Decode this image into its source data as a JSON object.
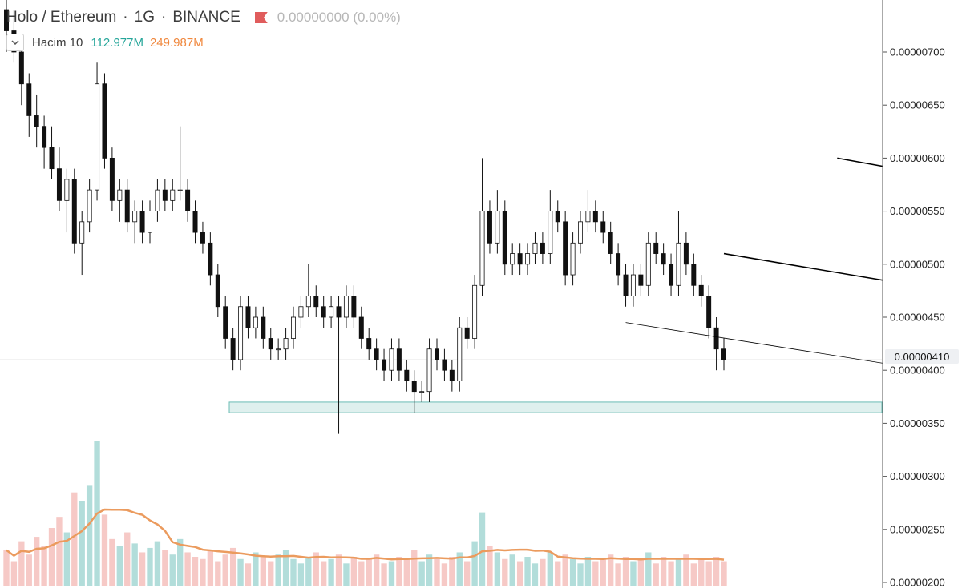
{
  "header": {
    "symbol": "Holo / Ethereum",
    "interval": "1G",
    "exchange": "BINANCE",
    "change": "0.00000000 (0.00%)",
    "sep1": "·",
    "sep2": "·"
  },
  "volume_legend": {
    "name": "Hacim 10",
    "value1": "112.977M",
    "value2": "249.987M"
  },
  "last_price_label": "0.00000410",
  "colors": {
    "candle": "#111111",
    "candle_up_body": "#ffffff",
    "volume_up": "#b2ddda",
    "volume_down": "#f6c9c6",
    "volume_ma": "#eb9b5e",
    "zone_fill": "#dff0ee",
    "zone_border": "#6bbcb4",
    "axis_line": "#555555"
  },
  "chart_data": {
    "type": "candlestick",
    "y_axis_ticks": [
      "0.00000700",
      "0.00000650",
      "0.00000600",
      "0.00000550",
      "0.00000500",
      "0.00000450",
      "0.00000400",
      "0.00000350",
      "0.00000300",
      "0.00000250",
      "0.00000200"
    ],
    "ylim": [
      2e-06,
      7.4e-06
    ],
    "last_price": 4.1e-06,
    "support_zone": {
      "from": 3.6e-06,
      "to": 3.7e-06
    },
    "trend_lines": [
      {
        "name": "channel-top",
        "from": [
          110,
          6e-06
        ],
        "to": [
          208,
          4.75e-06
        ]
      },
      {
        "name": "channel-bottom",
        "from": [
          95,
          5.1e-06
        ],
        "to": [
          204,
          3.8e-06
        ]
      },
      {
        "name": "lower-line",
        "from": [
          82,
          4.45e-06
        ],
        "to": [
          193,
          3.2e-06
        ]
      }
    ],
    "ohlc": [
      [
        7.4,
        7.5,
        7.0,
        7.2
      ],
      [
        7.2,
        7.4,
        6.9,
        7.0
      ],
      [
        7.0,
        7.1,
        6.5,
        6.7
      ],
      [
        6.7,
        6.8,
        6.2,
        6.4
      ],
      [
        6.4,
        6.6,
        6.1,
        6.3
      ],
      [
        6.3,
        6.4,
        5.9,
        6.1
      ],
      [
        6.1,
        6.3,
        5.8,
        5.9
      ],
      [
        5.9,
        6.1,
        5.5,
        5.6
      ],
      [
        5.6,
        5.9,
        5.3,
        5.8
      ],
      [
        5.8,
        5.9,
        5.1,
        5.2
      ],
      [
        5.2,
        5.5,
        4.9,
        5.4
      ],
      [
        5.4,
        5.8,
        5.3,
        5.7
      ],
      [
        5.7,
        6.9,
        5.6,
        6.7
      ],
      [
        6.7,
        6.8,
        5.9,
        6.0
      ],
      [
        6.0,
        6.1,
        5.5,
        5.6
      ],
      [
        5.6,
        5.8,
        5.4,
        5.7
      ],
      [
        5.7,
        5.8,
        5.3,
        5.4
      ],
      [
        5.4,
        5.6,
        5.2,
        5.5
      ],
      [
        5.5,
        5.6,
        5.2,
        5.3
      ],
      [
        5.3,
        5.6,
        5.2,
        5.5
      ],
      [
        5.5,
        5.8,
        5.4,
        5.7
      ],
      [
        5.7,
        5.8,
        5.5,
        5.6
      ],
      [
        5.6,
        5.8,
        5.5,
        5.7
      ],
      [
        5.7,
        6.3,
        5.6,
        5.7
      ],
      [
        5.7,
        5.8,
        5.4,
        5.5
      ],
      [
        5.5,
        5.6,
        5.2,
        5.3
      ],
      [
        5.3,
        5.4,
        5.1,
        5.2
      ],
      [
        5.2,
        5.3,
        4.8,
        4.9
      ],
      [
        4.9,
        5.0,
        4.5,
        4.6
      ],
      [
        4.6,
        4.7,
        4.2,
        4.3
      ],
      [
        4.3,
        4.4,
        4.0,
        4.1
      ],
      [
        4.1,
        4.7,
        4.0,
        4.6
      ],
      [
        4.6,
        4.7,
        4.3,
        4.4
      ],
      [
        4.4,
        4.6,
        4.3,
        4.5
      ],
      [
        4.5,
        4.6,
        4.2,
        4.3
      ],
      [
        4.3,
        4.4,
        4.1,
        4.2
      ],
      [
        4.2,
        4.3,
        4.1,
        4.2
      ],
      [
        4.2,
        4.4,
        4.1,
        4.3
      ],
      [
        4.3,
        4.6,
        4.2,
        4.5
      ],
      [
        4.5,
        4.7,
        4.4,
        4.6
      ],
      [
        4.6,
        5.0,
        4.5,
        4.7
      ],
      [
        4.7,
        4.8,
        4.5,
        4.6
      ],
      [
        4.6,
        4.7,
        4.4,
        4.5
      ],
      [
        4.5,
        4.7,
        4.4,
        4.6
      ],
      [
        4.6,
        4.7,
        3.4,
        4.5
      ],
      [
        4.5,
        4.8,
        4.4,
        4.7
      ],
      [
        4.7,
        4.8,
        4.4,
        4.5
      ],
      [
        4.5,
        4.6,
        4.2,
        4.3
      ],
      [
        4.3,
        4.4,
        4.1,
        4.2
      ],
      [
        4.2,
        4.3,
        4.0,
        4.1
      ],
      [
        4.1,
        4.2,
        3.9,
        4.0
      ],
      [
        4.0,
        4.3,
        3.9,
        4.2
      ],
      [
        4.2,
        4.3,
        3.9,
        4.0
      ],
      [
        4.0,
        4.1,
        3.8,
        3.9
      ],
      [
        3.9,
        4.0,
        3.6,
        3.8
      ],
      [
        3.8,
        3.9,
        3.7,
        3.8
      ],
      [
        3.8,
        4.3,
        3.7,
        4.2
      ],
      [
        4.2,
        4.3,
        4.0,
        4.1
      ],
      [
        4.1,
        4.2,
        3.9,
        4.0
      ],
      [
        4.0,
        4.1,
        3.8,
        3.9
      ],
      [
        3.9,
        4.5,
        3.8,
        4.4
      ],
      [
        4.4,
        4.5,
        4.2,
        4.3
      ],
      [
        4.3,
        4.9,
        4.2,
        4.8
      ],
      [
        4.8,
        6.0,
        4.7,
        5.5
      ],
      [
        5.5,
        5.6,
        5.1,
        5.2
      ],
      [
        5.2,
        5.7,
        5.1,
        5.5
      ],
      [
        5.5,
        5.6,
        4.9,
        5.0
      ],
      [
        5.0,
        5.2,
        4.9,
        5.1
      ],
      [
        5.1,
        5.2,
        4.9,
        5.0
      ],
      [
        5.0,
        5.2,
        4.9,
        5.1
      ],
      [
        5.1,
        5.3,
        5.0,
        5.2
      ],
      [
        5.2,
        5.3,
        5.0,
        5.1
      ],
      [
        5.1,
        5.7,
        5.0,
        5.5
      ],
      [
        5.5,
        5.6,
        5.3,
        5.4
      ],
      [
        5.4,
        5.5,
        4.8,
        4.9
      ],
      [
        4.9,
        5.3,
        4.8,
        5.2
      ],
      [
        5.2,
        5.5,
        5.1,
        5.4
      ],
      [
        5.4,
        5.7,
        5.3,
        5.5
      ],
      [
        5.5,
        5.6,
        5.3,
        5.4
      ],
      [
        5.4,
        5.5,
        5.2,
        5.3
      ],
      [
        5.3,
        5.4,
        5.0,
        5.1
      ],
      [
        5.1,
        5.2,
        4.8,
        4.9
      ],
      [
        4.9,
        5.0,
        4.6,
        4.7
      ],
      [
        4.7,
        5.0,
        4.6,
        4.9
      ],
      [
        4.9,
        5.0,
        4.7,
        4.8
      ],
      [
        4.8,
        5.3,
        4.7,
        5.2
      ],
      [
        5.2,
        5.3,
        5.0,
        5.1
      ],
      [
        5.1,
        5.2,
        4.9,
        5.0
      ],
      [
        5.0,
        5.1,
        4.7,
        4.8
      ],
      [
        4.8,
        5.5,
        4.7,
        5.2
      ],
      [
        5.2,
        5.3,
        4.9,
        5.0
      ],
      [
        5.0,
        5.1,
        4.7,
        4.8
      ],
      [
        4.8,
        4.9,
        4.6,
        4.7
      ],
      [
        4.7,
        4.8,
        4.3,
        4.4
      ],
      [
        4.4,
        4.5,
        4.0,
        4.2
      ],
      [
        4.2,
        4.3,
        4.0,
        4.1
      ]
    ],
    "volume": [
      1.6,
      1.1,
      2.0,
      1.4,
      2.2,
      1.8,
      2.6,
      3.1,
      2.4,
      4.2,
      3.8,
      4.5,
      6.5,
      3.2,
      2.1,
      1.8,
      2.4,
      1.9,
      1.5,
      1.7,
      2.0,
      1.6,
      1.4,
      2.1,
      1.5,
      1.3,
      1.2,
      1.6,
      1.1,
      1.4,
      1.7,
      1.2,
      1.0,
      1.5,
      1.3,
      1.1,
      1.4,
      1.6,
      1.2,
      1.0,
      1.3,
      1.5,
      1.1,
      1.2,
      1.4,
      1.0,
      1.3,
      1.1,
      1.2,
      1.4,
      1.0,
      1.1,
      1.3,
      1.2,
      1.6,
      1.1,
      1.4,
      1.2,
      1.0,
      1.3,
      1.5,
      1.1,
      2.0,
      3.3,
      1.8,
      1.5,
      1.2,
      1.4,
      1.1,
      1.3,
      1.0,
      1.2,
      1.5,
      1.1,
      1.4,
      1.2,
      1.0,
      1.3,
      1.1,
      1.2,
      1.4,
      1.0,
      1.3,
      1.1,
      1.2,
      1.5,
      1.0,
      1.3,
      1.1,
      1.2,
      1.4,
      1.0,
      1.2,
      1.1,
      1.3,
      1.1
    ]
  }
}
